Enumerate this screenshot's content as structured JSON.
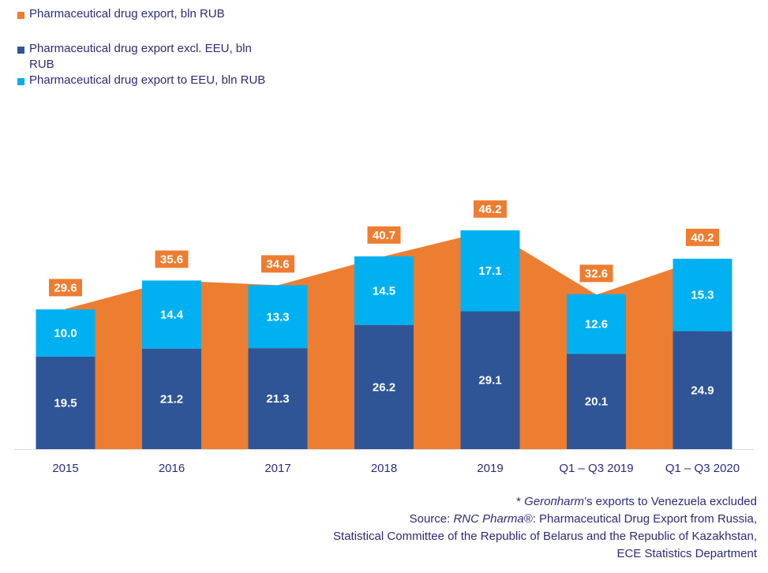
{
  "chart_data": {
    "type": "bar",
    "categories": [
      "2015",
      "2016",
      "2017",
      "2018",
      "2019",
      "Q1 – Q3 2019",
      "Q1 – Q3 2020"
    ],
    "series": [
      {
        "name": "Pharmaceutical drug export, bln RUB",
        "kind": "area",
        "color": "#ED7D31",
        "values": [
          29.6,
          35.6,
          34.6,
          40.7,
          46.2,
          32.6,
          40.2
        ]
      },
      {
        "name": "Pharmaceutical drug export excl. EEU, bln RUB",
        "kind": "stacked-bar",
        "color": "#2F5597",
        "values": [
          19.5,
          21.2,
          21.3,
          26.2,
          29.1,
          20.1,
          24.9
        ]
      },
      {
        "name": "Pharmaceutical drug export to EEU, bln RUB",
        "kind": "stacked-bar",
        "color": "#00B0F0",
        "values": [
          10.0,
          14.4,
          13.3,
          14.5,
          17.1,
          12.6,
          15.3
        ]
      }
    ],
    "ylim": [
      0,
      50
    ],
    "grid": false,
    "legend_position": "top-left"
  },
  "legend": {
    "total": "Pharmaceutical drug export, bln RUB",
    "excl_eeu": "Pharmaceutical drug export excl. EEU, bln RUB",
    "to_eeu": "Pharmaceutical drug export to EEU, bln RUB"
  },
  "notes": {
    "footnote_prefix": "* ",
    "footnote_company": "Gerопharm",
    "footnote_rest": "’s exports to Venezuela excluded",
    "source_prefix": "Source: ",
    "source_org": "RNC Pharma®",
    "source_rest": ": Pharmaceutical Drug Export from Russia,",
    "source_line2": "Statistical Committee of the Republic of Belarus and the Republic of Kazakhstan,",
    "source_line3": "ECE Statistics Department"
  },
  "colors": {
    "area": "#ED7D31",
    "dark_bar": "#2F5597",
    "light_bar": "#00B0F0",
    "label_box": "#ED7D31",
    "axis_text": "#2b2b7a"
  }
}
